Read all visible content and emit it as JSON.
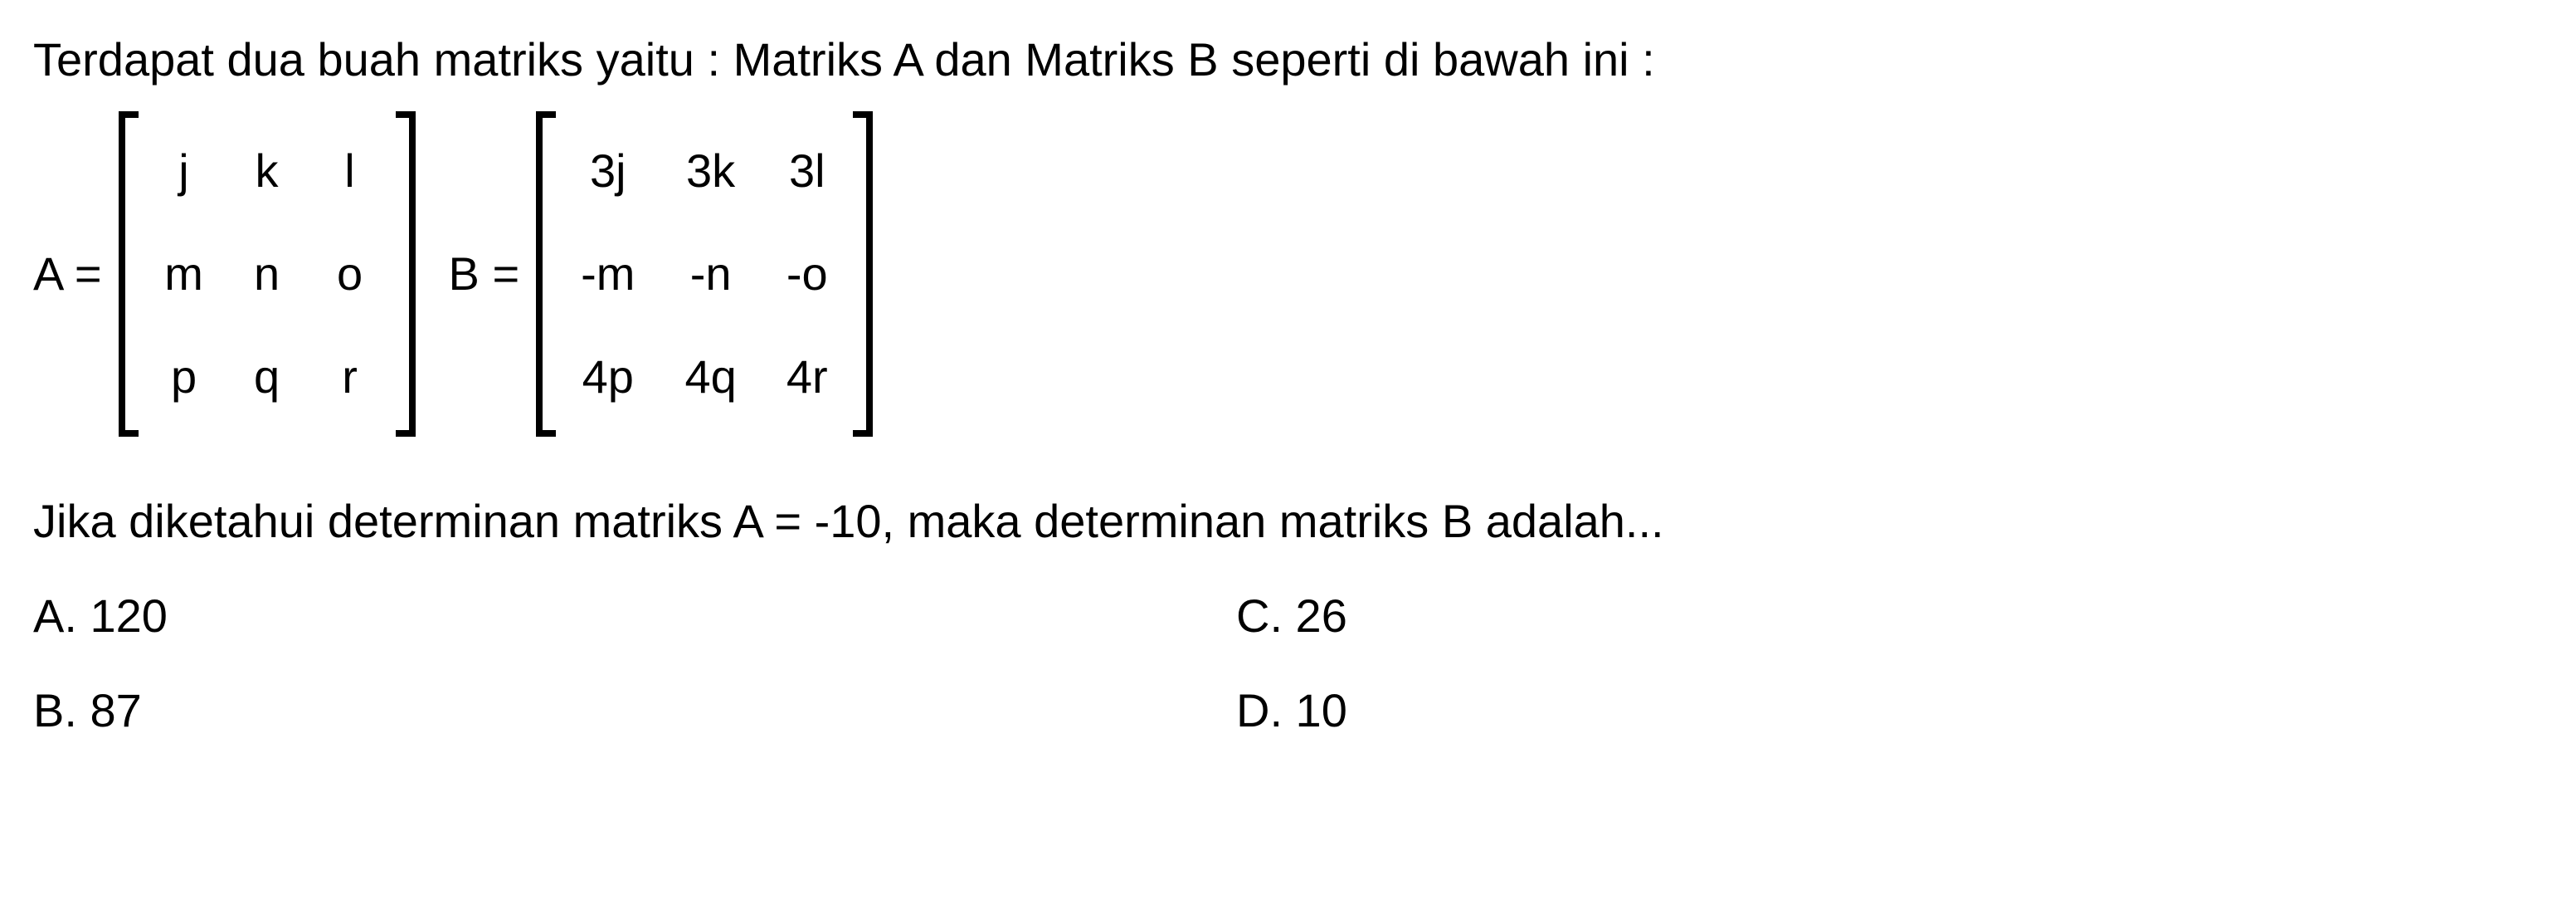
{
  "question": {
    "intro": "Terdapat dua buah matriks yaitu : Matriks A dan Matriks B seperti di bawah ini :",
    "sub": "Jika diketahui determinan matriks A = -10, maka determinan matriks B adalah..."
  },
  "matrixA": {
    "label": "A =",
    "rows": 3,
    "cols": 3,
    "cells": [
      "j",
      "k",
      "l",
      "m",
      "n",
      "o",
      "p",
      "q",
      "r"
    ],
    "text_color": "#000000",
    "bracket_color": "#000000"
  },
  "matrixB": {
    "label": "B =",
    "rows": 3,
    "cols": 3,
    "cells": [
      "3j",
      "3k",
      "3l",
      "-m",
      "-n",
      "-o",
      "4p",
      "4q",
      "4r"
    ],
    "text_color": "#000000",
    "bracket_color": "#000000"
  },
  "options": {
    "a": "A. 120",
    "b": "B. 87",
    "c": "C. 26",
    "d": "D. 10"
  },
  "style": {
    "background": "#ffffff",
    "font_color": "#000000",
    "font_family": "Comic Sans MS",
    "font_size_pt": 42
  }
}
